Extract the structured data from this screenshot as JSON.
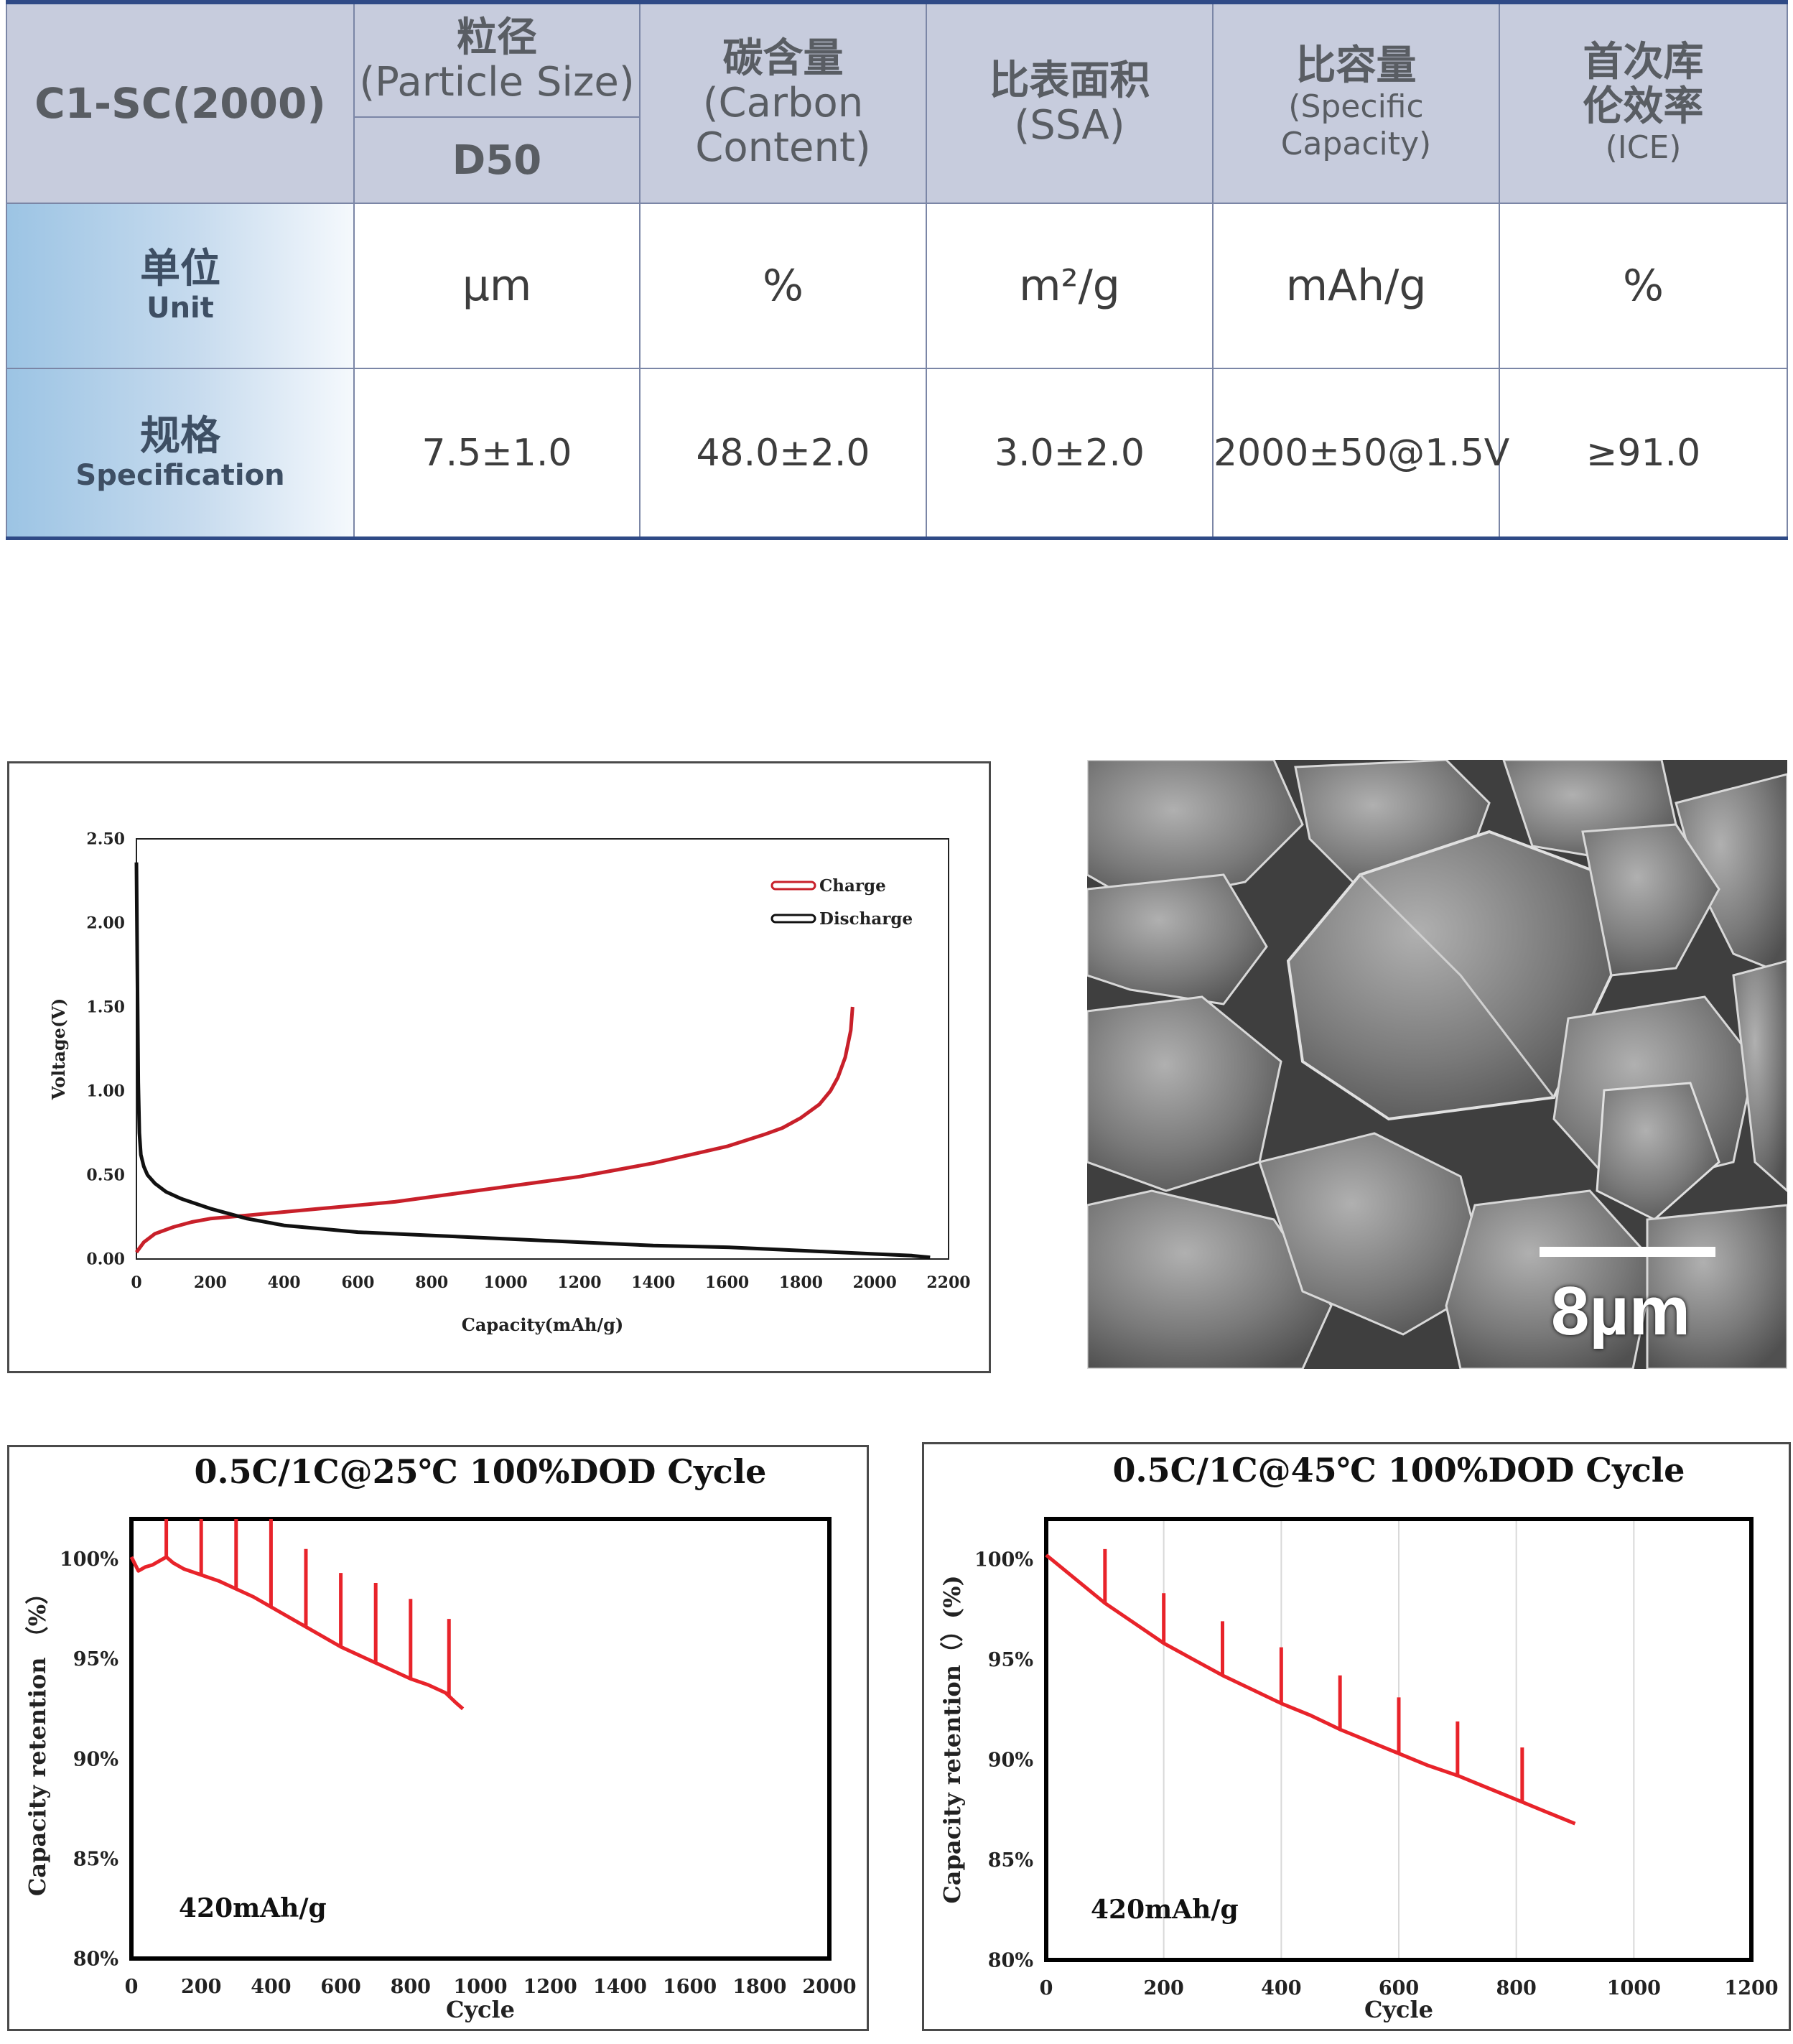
{
  "spec_table": {
    "model": "C1-SC(2000)",
    "headers": [
      {
        "zh": "粒径",
        "en": "(Particle Size)",
        "sub": "D50"
      },
      {
        "zh": "碳含量",
        "en": "(Carbon Content)"
      },
      {
        "zh": "比表面积",
        "en": "(SSA)"
      },
      {
        "zh": "比容量",
        "en": "(Specific Capacity)"
      },
      {
        "zh": "首次库伦效率",
        "en": "(ICE)"
      }
    ],
    "unit_row": {
      "zh": "单位",
      "en": "Unit",
      "values": [
        "µm",
        "%",
        "m²/g",
        "mAh/g",
        "%"
      ]
    },
    "spec_row": {
      "zh": "规格",
      "en": "Specification",
      "values": [
        "7.5±1.0",
        "48.0±2.0",
        "3.0±2.0",
        "2000±50@1.5V",
        "≥91.0"
      ]
    }
  },
  "sem_image": {
    "scale_label": "8µm"
  },
  "chart_data": [
    {
      "type": "line",
      "title": "",
      "xlabel": "Capacity(mAh/g)",
      "ylabel": "Voltage(V)",
      "xlim": [
        0,
        2200
      ],
      "ylim": [
        0,
        2.5
      ],
      "xticks": [
        "0",
        "200",
        "400",
        "600",
        "800",
        "1000",
        "1200",
        "1400",
        "1600",
        "1800",
        "2000",
        "2200"
      ],
      "yticks": [
        "0.00",
        "0.50",
        "1.00",
        "1.50",
        "2.00",
        "2.50"
      ],
      "legend_position": "top-right",
      "series": [
        {
          "name": "Charge",
          "color": "#c8202a",
          "x": [
            0,
            20,
            50,
            100,
            150,
            200,
            300,
            400,
            500,
            600,
            700,
            800,
            900,
            1000,
            1100,
            1200,
            1300,
            1400,
            1500,
            1600,
            1700,
            1750,
            1800,
            1850,
            1880,
            1900,
            1920,
            1935,
            1940
          ],
          "y": [
            0.04,
            0.1,
            0.15,
            0.19,
            0.22,
            0.24,
            0.26,
            0.28,
            0.3,
            0.32,
            0.34,
            0.37,
            0.4,
            0.43,
            0.46,
            0.49,
            0.53,
            0.57,
            0.62,
            0.67,
            0.74,
            0.78,
            0.84,
            0.92,
            1.0,
            1.08,
            1.2,
            1.36,
            1.5
          ]
        },
        {
          "name": "Discharge",
          "color": "#111111",
          "x": [
            0,
            3,
            5,
            8,
            12,
            20,
            30,
            50,
            80,
            120,
            200,
            300,
            400,
            500,
            600,
            800,
            1000,
            1200,
            1400,
            1600,
            1800,
            1900,
            2000,
            2100,
            2150
          ],
          "y": [
            2.36,
            1.6,
            1.05,
            0.75,
            0.62,
            0.55,
            0.5,
            0.45,
            0.4,
            0.36,
            0.3,
            0.24,
            0.2,
            0.18,
            0.16,
            0.14,
            0.12,
            0.1,
            0.08,
            0.07,
            0.05,
            0.04,
            0.03,
            0.02,
            0.01
          ]
        }
      ]
    },
    {
      "type": "line",
      "title": "0.5C/1C@25℃ 100%DOD Cycle",
      "xlabel": "Cycle",
      "ylabel": "Capacity retention （%）",
      "annotation": "420mAh/g",
      "xlim": [
        0,
        2000
      ],
      "ylim": [
        80,
        102
      ],
      "xticks": [
        "0",
        "200",
        "400",
        "600",
        "800",
        "1000",
        "1200",
        "1400",
        "1600",
        "1800",
        "2000"
      ],
      "yticks": [
        "80%",
        "85%",
        "90%",
        "95%",
        "100%"
      ],
      "series": [
        {
          "name": "",
          "color": "#e8232a",
          "x": [
            0,
            20,
            40,
            60,
            80,
            100,
            120,
            150,
            200,
            250,
            300,
            350,
            400,
            450,
            500,
            550,
            600,
            650,
            700,
            750,
            800,
            850,
            900,
            930,
            950
          ],
          "y": [
            100.1,
            99.4,
            99.6,
            99.7,
            99.9,
            100.1,
            99.8,
            99.5,
            99.2,
            98.9,
            98.5,
            98.1,
            97.6,
            97.1,
            96.6,
            96.1,
            95.6,
            95.2,
            94.8,
            94.4,
            94.0,
            93.7,
            93.3,
            92.8,
            92.5
          ],
          "spikes": [
            {
              "x": 100,
              "y": 102
            },
            {
              "x": 200,
              "y": 102
            },
            {
              "x": 300,
              "y": 102
            },
            {
              "x": 400,
              "y": 102
            },
            {
              "x": 500,
              "y": 100.5
            },
            {
              "x": 600,
              "y": 99.3
            },
            {
              "x": 700,
              "y": 98.8
            },
            {
              "x": 800,
              "y": 98.0
            },
            {
              "x": 910,
              "y": 97.0
            }
          ]
        }
      ]
    },
    {
      "type": "line",
      "title": "0.5C/1C@45℃ 100%DOD Cycle",
      "xlabel": "Cycle",
      "ylabel": "Capacity retention（）(%)",
      "annotation": "420mAh/g",
      "xlim": [
        0,
        1200
      ],
      "ylim": [
        80,
        102
      ],
      "xticks": [
        "0",
        "200",
        "400",
        "600",
        "800",
        "1000",
        "1200"
      ],
      "yticks": [
        "80%",
        "85%",
        "90%",
        "95%",
        "100%"
      ],
      "gridlines_vertical": true,
      "series": [
        {
          "name": "",
          "color": "#e8232a",
          "x": [
            0,
            50,
            100,
            150,
            200,
            250,
            300,
            350,
            400,
            450,
            500,
            550,
            600,
            650,
            700,
            750,
            800,
            850,
            900
          ],
          "y": [
            100.2,
            99.0,
            97.8,
            96.8,
            95.8,
            95.0,
            94.2,
            93.5,
            92.8,
            92.2,
            91.5,
            90.9,
            90.3,
            89.7,
            89.2,
            88.6,
            88.0,
            87.4,
            86.8
          ],
          "spikes": [
            {
              "x": 100,
              "y": 100.5
            },
            {
              "x": 200,
              "y": 98.3
            },
            {
              "x": 300,
              "y": 96.9
            },
            {
              "x": 400,
              "y": 95.6
            },
            {
              "x": 500,
              "y": 94.2
            },
            {
              "x": 600,
              "y": 93.1
            },
            {
              "x": 700,
              "y": 91.9
            },
            {
              "x": 810,
              "y": 90.6
            }
          ]
        }
      ]
    }
  ]
}
